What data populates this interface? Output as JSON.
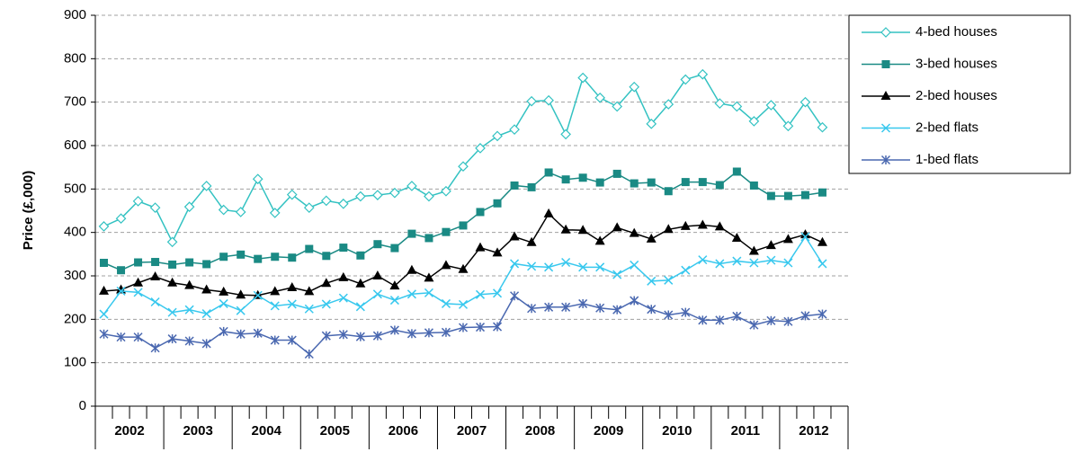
{
  "chart_data": {
    "type": "line",
    "y_label": "Price (£,000)",
    "categories": [
      null,
      null,
      null,
      null,
      null,
      null,
      null,
      null,
      null,
      null,
      null,
      null,
      null,
      null,
      null,
      null,
      null,
      null,
      null,
      null,
      null,
      null,
      null,
      null,
      null,
      null,
      null,
      null,
      null,
      null,
      null,
      null,
      null,
      null,
      null,
      null,
      null,
      null,
      null,
      null,
      null,
      null,
      null,
      null
    ],
    "year_labels": [
      "2002",
      "2003",
      "2004",
      "2005",
      "2006",
      "2007",
      "2008",
      "2009",
      "2010",
      "2011",
      "2012"
    ],
    "ylim": [
      0,
      900
    ],
    "yticks": [
      0,
      100,
      200,
      300,
      400,
      500,
      600,
      700,
      800,
      900
    ],
    "grid": true,
    "legend": "right",
    "series": [
      {
        "name": "4-bed houses",
        "color": "#33c2c2",
        "marker": "diamond",
        "values": [
          414,
          432,
          472,
          457,
          378,
          459,
          507,
          452,
          447,
          523,
          445,
          487,
          457,
          473,
          466,
          483,
          486,
          491,
          507,
          483,
          495,
          552,
          594,
          622,
          637,
          702,
          704,
          626,
          756,
          710,
          690,
          735,
          650,
          695,
          752,
          764,
          697,
          690,
          656,
          693,
          645,
          700,
          642,
          null
        ]
      },
      {
        "name": "3-bed houses",
        "color": "#1a8a84",
        "marker": "square",
        "values": [
          330,
          313,
          331,
          332,
          326,
          331,
          327,
          344,
          349,
          339,
          344,
          342,
          362,
          346,
          365,
          347,
          373,
          364,
          397,
          387,
          401,
          416,
          447,
          467,
          508,
          504,
          538,
          522,
          526,
          515,
          535,
          513,
          515,
          495,
          516,
          516,
          509,
          540,
          508,
          484,
          484,
          486,
          492,
          null
        ]
      },
      {
        "name": "2-bed houses",
        "color": "#000000",
        "marker": "triangle",
        "values": [
          265,
          268,
          284,
          298,
          284,
          278,
          268,
          263,
          256,
          255,
          264,
          273,
          264,
          283,
          296,
          282,
          300,
          277,
          313,
          295,
          324,
          315,
          365,
          353,
          390,
          377,
          443,
          406,
          405,
          380,
          411,
          398,
          385,
          407,
          414,
          417,
          413,
          387,
          357,
          370,
          384,
          395,
          377,
          null
        ]
      },
      {
        "name": "2-bed flats",
        "color": "#38c8ee",
        "marker": "x",
        "values": [
          212,
          265,
          262,
          240,
          216,
          222,
          213,
          236,
          220,
          255,
          231,
          235,
          224,
          235,
          249,
          229,
          258,
          244,
          258,
          261,
          236,
          234,
          257,
          260,
          328,
          322,
          320,
          331,
          320,
          320,
          303,
          325,
          288,
          290,
          313,
          337,
          328,
          334,
          330,
          336,
          330,
          390,
          328,
          null
        ]
      },
      {
        "name": "1-bed flats",
        "color": "#4a68b0",
        "marker": "asterisk",
        "values": [
          166,
          159,
          159,
          134,
          155,
          150,
          144,
          172,
          166,
          168,
          152,
          152,
          120,
          162,
          165,
          160,
          162,
          175,
          167,
          169,
          170,
          181,
          182,
          183,
          254,
          225,
          228,
          228,
          236,
          226,
          222,
          243,
          223,
          210,
          216,
          198,
          198,
          207,
          187,
          197,
          195,
          208,
          212,
          null
        ]
      }
    ]
  }
}
